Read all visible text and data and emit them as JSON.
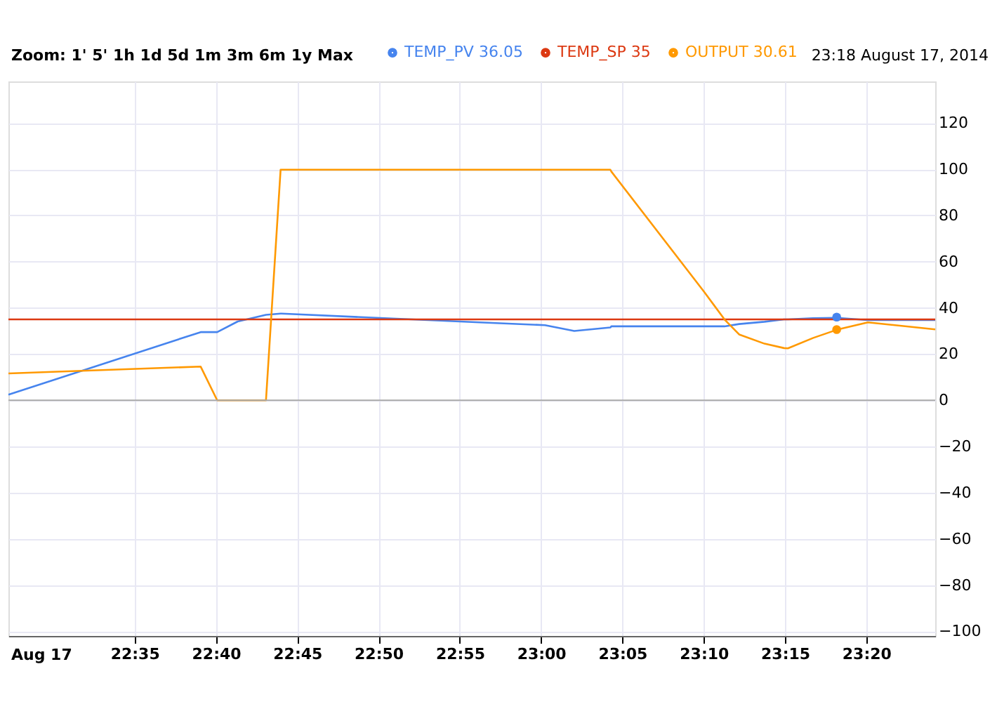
{
  "chart_data": {
    "type": "line",
    "x": [
      22.454,
      22.651,
      22.668,
      22.689,
      22.718,
      22.733,
      22.734,
      22.937,
      23.004,
      23.034,
      23.071,
      23.072,
      23.167,
      23.188,
      23.203,
      23.229,
      23.249,
      23.253,
      23.279,
      23.303,
      23.335,
      23.404
    ],
    "series": [
      {
        "name": "TEMP_PV 36.05",
        "color": "#4684ee",
        "values": [
          2.4,
          29.5,
          29.5,
          34.1,
          37.0,
          37.5,
          37.5,
          33.7,
          32.5,
          30.0,
          31.5,
          32.0,
          32.0,
          32.0,
          33.0,
          34.0,
          35.0,
          35.0,
          35.5,
          35.7,
          34.7,
          34.7
        ]
      },
      {
        "name": "TEMP_SP 35",
        "color": "#dc3912",
        "values": [
          35,
          35,
          35,
          35,
          35,
          35,
          35,
          35,
          35,
          35,
          35,
          35,
          35,
          35,
          35,
          35,
          35,
          35,
          35,
          35,
          35,
          35
        ]
      },
      {
        "name": "OUTPUT 30.61",
        "color": "#ff9900",
        "values": [
          11.6,
          14.6,
          0,
          0,
          0,
          99.8,
          99.8,
          99.8,
          99.8,
          99.8,
          99.8,
          99.0,
          47.0,
          35.0,
          28.5,
          24.5,
          22.6,
          22.5,
          27.0,
          30.5,
          33.7,
          30.7
        ]
      },
      {
        "type": "scatter",
        "marker": "circle",
        "x": [
          23.303,
          23.303
        ],
        "values": [
          36,
          30.6
        ],
        "colors": [
          "#4684ee",
          "#ff9900"
        ]
      }
    ],
    "xlim": [
      22.454,
      23.404
    ],
    "xticks": [
      {
        "value": 22.5833,
        "label": "22:35"
      },
      {
        "value": 22.6667,
        "label": "22:40"
      },
      {
        "value": 22.75,
        "label": "22:45"
      },
      {
        "value": 22.8333,
        "label": "22:50"
      },
      {
        "value": 22.9167,
        "label": "22:55"
      },
      {
        "value": 23.0,
        "label": "23:00"
      },
      {
        "value": 23.0833,
        "label": "23:05"
      },
      {
        "value": 23.1667,
        "label": "23:10"
      },
      {
        "value": 23.25,
        "label": "23:15"
      },
      {
        "value": 23.3333,
        "label": "23:20"
      }
    ],
    "ylim": [
      -102,
      138
    ],
    "yticks": [
      -100,
      -80,
      -60,
      -40,
      -20,
      0,
      20,
      40,
      60,
      80,
      100,
      120
    ],
    "ref_lines": [
      {
        "axis": "y",
        "value": 0,
        "color": "#aaaaaa"
      }
    ],
    "annotations": [
      "Zoom: 1' 5' 1h 1d 5d 1m 3m 6m 1y Max",
      "23:18 August 17, 2014",
      "Aug 17"
    ],
    "grid": true,
    "legend": "top",
    "line_style": "solid",
    "marker": "none"
  }
}
